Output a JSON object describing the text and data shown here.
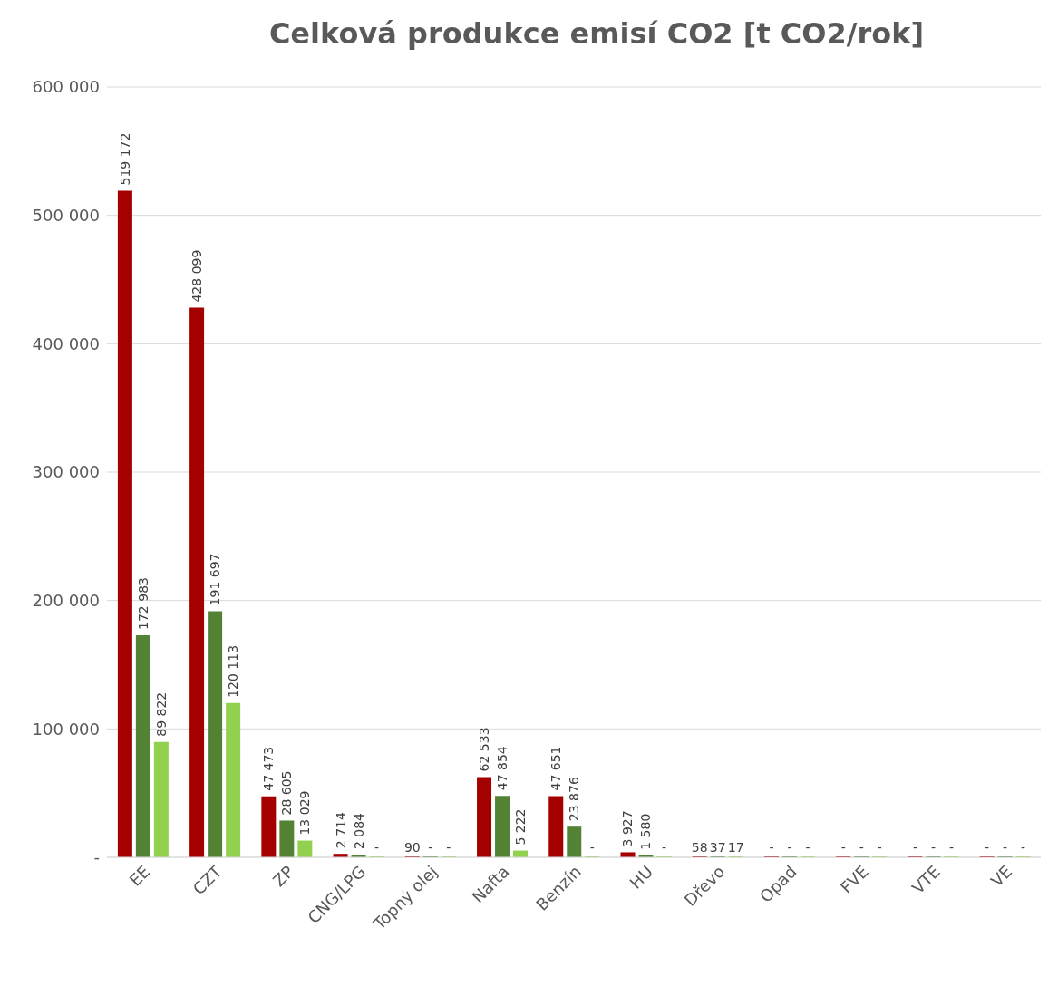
{
  "chart_data": {
    "type": "bar",
    "title": "Celková produkce emisí CO2 [t CO2/rok]",
    "categories": [
      "EE",
      "CZT",
      "ZP",
      "CNG/LPG",
      "Topný olej",
      "Nafta",
      "Benzín",
      "HU",
      "Dřevo",
      "Opad",
      "FVE",
      "VTE",
      "VE"
    ],
    "series": [
      {
        "color": "#a50000",
        "values": [
          519172,
          428099,
          47473,
          2714,
          90,
          62533,
          47651,
          3927,
          58,
          0,
          0,
          0,
          0
        ],
        "value_labels": [
          "519 172",
          "428 099",
          "47 473",
          "2 714",
          "90",
          "62 533",
          "47 651",
          "3 927",
          "58",
          "-",
          "-",
          "-",
          "-"
        ]
      },
      {
        "color": "#548235",
        "values": [
          172983,
          191697,
          28605,
          2084,
          0,
          47854,
          23876,
          1580,
          37,
          0,
          0,
          0,
          0
        ],
        "value_labels": [
          "172 983",
          "191 697",
          "28 605",
          "2 084",
          "-",
          "47 854",
          "23 876",
          "1 580",
          "37",
          "-",
          "-",
          "-",
          "-"
        ]
      },
      {
        "color": "#92d050",
        "values": [
          89822,
          120113,
          13029,
          0,
          0,
          5222,
          0,
          0,
          17,
          0,
          0,
          0,
          0
        ],
        "value_labels": [
          "89 822",
          "120 113",
          "13 029",
          "-",
          "-",
          "5 222",
          "-",
          "-",
          "17",
          "-",
          "-",
          "-",
          "-"
        ]
      }
    ],
    "ylim": [
      0,
      600000
    ],
    "yticks": [
      {
        "value": 0,
        "label": "-"
      },
      {
        "value": 100000,
        "label": "100 000"
      },
      {
        "value": 200000,
        "label": "200 000"
      },
      {
        "value": 300000,
        "label": "300 000"
      },
      {
        "value": 400000,
        "label": "400 000"
      },
      {
        "value": 500000,
        "label": "500 000"
      },
      {
        "value": 600000,
        "label": "600 000"
      }
    ],
    "grid": "y",
    "legend": false
  }
}
